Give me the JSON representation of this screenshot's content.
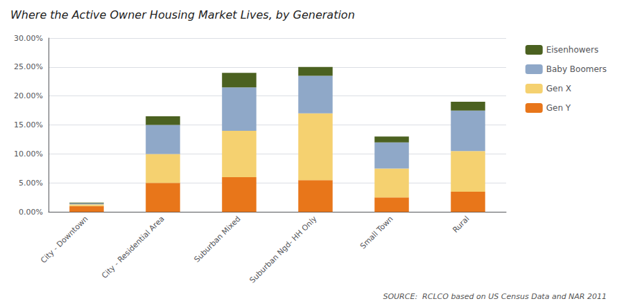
{
  "chart_data": {
    "type": "bar",
    "title": "Where the Active Owner Housing Market Lives, by Generation",
    "categories": [
      "City - Downtown",
      "City - Residential Area",
      "Suburban Mixed",
      "Suburban Ngd- HH Only",
      "Small Town",
      "Rural"
    ],
    "series": [
      {
        "name": "Gen Y",
        "color": "#E8761A",
        "values": [
          0.01,
          0.05,
          0.06,
          0.055,
          0.025,
          0.035
        ]
      },
      {
        "name": "Gen X",
        "color": "#F5D170",
        "values": [
          0.003,
          0.05,
          0.08,
          0.115,
          0.05,
          0.07
        ]
      },
      {
        "name": "Baby Boomers",
        "color": "#8FA8C8",
        "values": [
          0.002,
          0.05,
          0.075,
          0.065,
          0.045,
          0.07
        ]
      },
      {
        "name": "Eisenhowers",
        "color": "#4B6120",
        "values": [
          0.001,
          0.015,
          0.025,
          0.015,
          0.01,
          0.015
        ]
      }
    ],
    "stacked": true,
    "ylim": [
      0,
      0.3
    ],
    "yticks": [
      {
        "value": 0.0,
        "label": "0.00%"
      },
      {
        "value": 0.05,
        "label": "5.00%"
      },
      {
        "value": 0.1,
        "label": "10.00%"
      },
      {
        "value": 0.15,
        "label": "15.00%"
      },
      {
        "value": 0.2,
        "label": "20.00%"
      },
      {
        "value": 0.25,
        "label": "25.00%"
      },
      {
        "value": 0.3,
        "label": "30.00%"
      }
    ],
    "grid": true,
    "legend": "right",
    "annotations": [
      "SOURCE:  RCLCO based on US Census Data and NAR 2011"
    ]
  }
}
